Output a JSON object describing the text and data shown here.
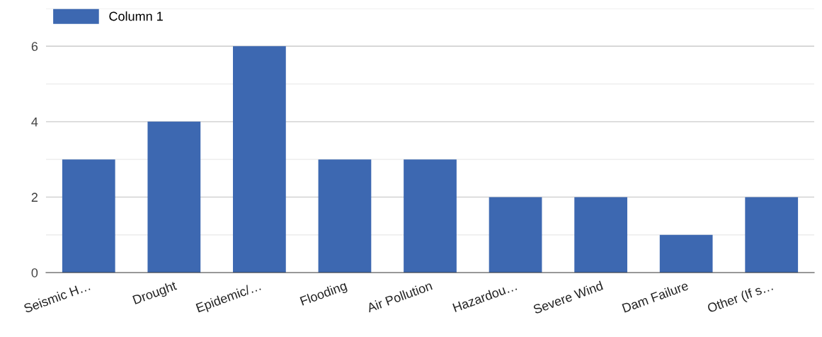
{
  "chart_data": {
    "type": "bar",
    "categories": [
      "Seismic H…",
      "Drought",
      "Epidemic/…",
      "Flooding",
      "Air Pollution",
      "Hazardou…",
      "Severe Wind",
      "Dam Failure",
      "Other (If s…"
    ],
    "series": [
      {
        "name": "Column 1",
        "color": "#3d68b1",
        "values": [
          3,
          4,
          6,
          3,
          3,
          2,
          2,
          1,
          2
        ]
      }
    ],
    "ylim": [
      0,
      7
    ],
    "yticks": [
      0,
      {
        "value": 1,
        "label": null
      },
      2,
      {
        "value": 3,
        "label": null
      },
      4,
      {
        "value": 5,
        "label": null
      },
      6,
      {
        "value": 7,
        "label": null
      }
    ],
    "grid": "y",
    "legend": "top left"
  }
}
